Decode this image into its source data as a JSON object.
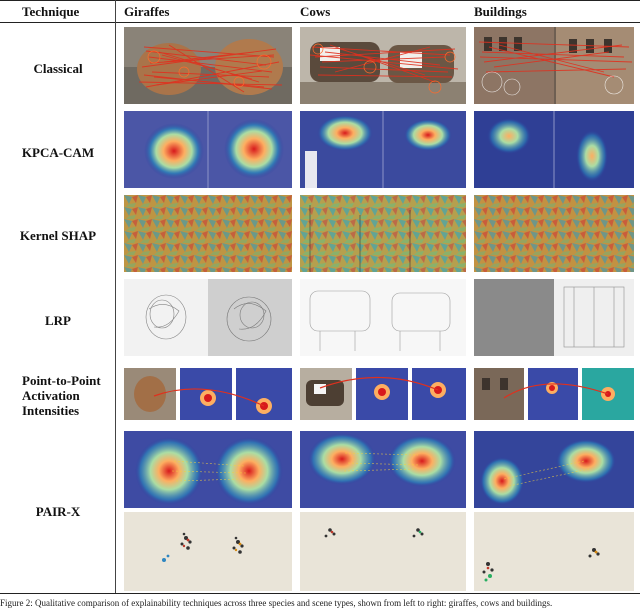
{
  "table": {
    "headers": [
      "Technique",
      "Giraffes",
      "Cows",
      "Buildings"
    ],
    "rows": [
      {
        "label": "Classical"
      },
      {
        "label": "KPCA-CAM"
      },
      {
        "label": "Kernel SHAP"
      },
      {
        "label": "LRP"
      },
      {
        "label": "Point-to-Point Activation Intensities"
      },
      {
        "label": "PAIR-X"
      }
    ]
  },
  "caption": "Figure 2: Qualitative comparison of explainability techniques across three species and scene types, shown from left to right: giraffes, cows and buildings.",
  "colors": {
    "match_lines": "#e0301e",
    "heat_hot": "#d7191c",
    "heat_cold": "#2b3b9c",
    "plot_bg": "#e9e4d8"
  }
}
